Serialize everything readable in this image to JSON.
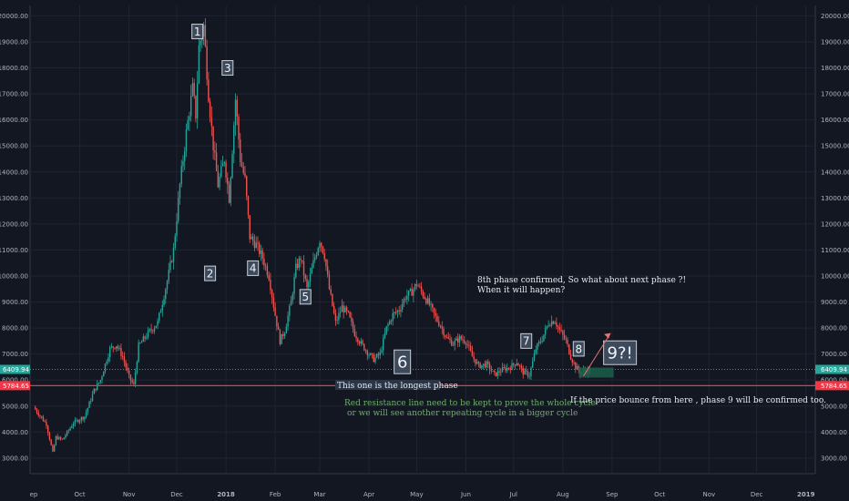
{
  "chart_data": {
    "type": "candlestick",
    "title": "",
    "xlabel": "",
    "ylabel": "",
    "ylim": [
      2400,
      20400
    ],
    "y_ticks": [
      "3000.00",
      "4000.00",
      "5000.00",
      "6000.00",
      "7000.00",
      "8000.00",
      "9000.00",
      "10000.00",
      "11000.00",
      "12000.00",
      "13000.00",
      "14000.00",
      "15000.00",
      "16000.00",
      "17000.00",
      "18000.00",
      "19000.00",
      "20000.00"
    ],
    "x_ticks": [
      {
        "label": "ep",
        "day": 0
      },
      {
        "label": "Oct",
        "day": 29
      },
      {
        "label": "Nov",
        "day": 60
      },
      {
        "label": "Dec",
        "day": 90
      },
      {
        "label": "2018",
        "day": 121
      },
      {
        "label": "Feb",
        "day": 152
      },
      {
        "label": "Mar",
        "day": 180
      },
      {
        "label": "Apr",
        "day": 211
      },
      {
        "label": "May",
        "day": 241
      },
      {
        "label": "Jun",
        "day": 272
      },
      {
        "label": "Jul",
        "day": 302
      },
      {
        "label": "Aug",
        "day": 333
      },
      {
        "label": "Sep",
        "day": 364
      },
      {
        "label": "Oct",
        "day": 394
      },
      {
        "label": "Nov",
        "day": 425
      },
      {
        "label": "Dec",
        "day": 455
      },
      {
        "label": "2019",
        "day": 486
      }
    ],
    "price_path": [
      [
        0,
        4950
      ],
      [
        8,
        4300
      ],
      [
        12,
        3200
      ],
      [
        14,
        3800
      ],
      [
        18,
        3700
      ],
      [
        25,
        4350
      ],
      [
        32,
        4600
      ],
      [
        38,
        5600
      ],
      [
        42,
        6000
      ],
      [
        48,
        7200
      ],
      [
        52,
        7350
      ],
      [
        56,
        6900
      ],
      [
        60,
        6100
      ],
      [
        63,
        5800
      ],
      [
        66,
        7300
      ],
      [
        72,
        7800
      ],
      [
        78,
        8200
      ],
      [
        84,
        9800
      ],
      [
        88,
        11000
      ],
      [
        92,
        13500
      ],
      [
        96,
        15500
      ],
      [
        100,
        17200
      ],
      [
        102,
        16200
      ],
      [
        104,
        18800
      ],
      [
        107,
        19600
      ],
      [
        110,
        17000
      ],
      [
        113,
        15000
      ],
      [
        116,
        13500
      ],
      [
        120,
        14500
      ],
      [
        123,
        13000
      ],
      [
        127,
        16800
      ],
      [
        130,
        14500
      ],
      [
        133,
        13700
      ],
      [
        136,
        11500
      ],
      [
        140,
        11200
      ],
      [
        144,
        10700
      ],
      [
        148,
        10000
      ],
      [
        152,
        8500
      ],
      [
        155,
        7500
      ],
      [
        158,
        7900
      ],
      [
        162,
        9000
      ],
      [
        165,
        10300
      ],
      [
        168,
        10700
      ],
      [
        172,
        9500
      ],
      [
        176,
        10500
      ],
      [
        180,
        11400
      ],
      [
        183,
        10800
      ],
      [
        186,
        9500
      ],
      [
        190,
        8200
      ],
      [
        194,
        8800
      ],
      [
        198,
        8500
      ],
      [
        202,
        7800
      ],
      [
        206,
        7400
      ],
      [
        211,
        7000
      ],
      [
        214,
        6800
      ],
      [
        218,
        7000
      ],
      [
        222,
        8000
      ],
      [
        226,
        8500
      ],
      [
        230,
        8700
      ],
      [
        234,
        9200
      ],
      [
        238,
        9400
      ],
      [
        241,
        9700
      ],
      [
        245,
        9300
      ],
      [
        249,
        8900
      ],
      [
        253,
        8400
      ],
      [
        256,
        8100
      ],
      [
        260,
        7600
      ],
      [
        264,
        7400
      ],
      [
        268,
        7600
      ],
      [
        272,
        7500
      ],
      [
        276,
        6900
      ],
      [
        280,
        6550
      ],
      [
        285,
        6600
      ],
      [
        290,
        6200
      ],
      [
        295,
        6400
      ],
      [
        300,
        6500
      ],
      [
        304,
        6700
      ],
      [
        308,
        6300
      ],
      [
        312,
        6200
      ],
      [
        316,
        7200
      ],
      [
        320,
        7600
      ],
      [
        324,
        8200
      ],
      [
        328,
        8300
      ],
      [
        331,
        7900
      ],
      [
        335,
        7500
      ],
      [
        338,
        6900
      ],
      [
        341,
        6500
      ],
      [
        344,
        6300
      ],
      [
        348,
        6350
      ],
      [
        350,
        6400
      ]
    ],
    "current_price": {
      "value": 6409.94,
      "label": "6409.94",
      "color": "#26a69a"
    },
    "resistance_line": {
      "value": 5784.65,
      "label": "5784.65",
      "color": "#f23645"
    },
    "phase_labels": [
      {
        "text": "1",
        "day": 103,
        "price": 19400
      },
      {
        "text": "2",
        "day": 111,
        "price": 10100
      },
      {
        "text": "3",
        "day": 122,
        "price": 18000
      },
      {
        "text": "4",
        "day": 138,
        "price": 10300
      },
      {
        "text": "5",
        "day": 171,
        "price": 9200
      },
      {
        "text": "6",
        "day": 232,
        "price": 6700
      },
      {
        "text": "7",
        "day": 310,
        "price": 7500
      },
      {
        "text": "8",
        "day": 343,
        "price": 7200
      },
      {
        "text": "9?!",
        "day": 369,
        "price": 7050
      }
    ],
    "annotations": {
      "longest_phase": "This one is the longest phase",
      "resistance_note_1": "Red resistance line need to be kept to prove the whole cycle",
      "resistance_note_2": "or we will see another repeating cycle in a bigger cycle",
      "phase8_note_1": "8th phase confirmed, So what about next phase ?!",
      "phase8_note_2": "When it will happen?",
      "bounce_note": "If the price bounce from here , phase 9 will be confirmed too."
    },
    "colors": {
      "up": "#26a69a",
      "down": "#ef5350",
      "background": "#131722",
      "grid": "#1f2433",
      "note_green": "#6fae6c"
    }
  }
}
